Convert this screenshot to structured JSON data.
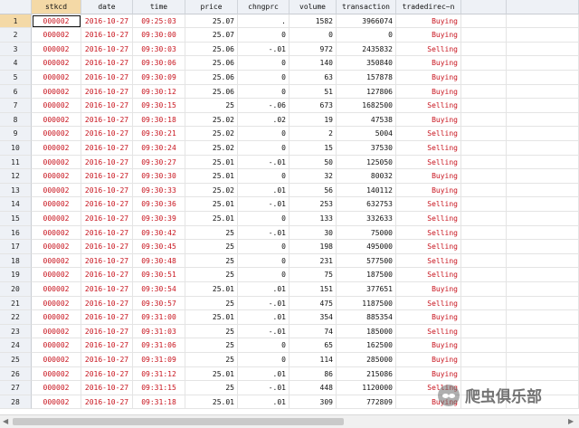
{
  "columns": [
    "stkcd",
    "date",
    "time",
    "price",
    "chngprc",
    "volume",
    "transaction",
    "tradedirec~n"
  ],
  "rows": [
    [
      "1",
      "000002",
      "2016-10-27",
      "09:25:03",
      "25.07",
      ".",
      "1582",
      "3966074",
      "Buying"
    ],
    [
      "2",
      "000002",
      "2016-10-27",
      "09:30:00",
      "25.07",
      "0",
      "0",
      "0",
      "Buying"
    ],
    [
      "3",
      "000002",
      "2016-10-27",
      "09:30:03",
      "25.06",
      "-.01",
      "972",
      "2435832",
      "Selling"
    ],
    [
      "4",
      "000002",
      "2016-10-27",
      "09:30:06",
      "25.06",
      "0",
      "140",
      "350840",
      "Buying"
    ],
    [
      "5",
      "000002",
      "2016-10-27",
      "09:30:09",
      "25.06",
      "0",
      "63",
      "157878",
      "Buying"
    ],
    [
      "6",
      "000002",
      "2016-10-27",
      "09:30:12",
      "25.06",
      "0",
      "51",
      "127806",
      "Buying"
    ],
    [
      "7",
      "000002",
      "2016-10-27",
      "09:30:15",
      "25",
      "-.06",
      "673",
      "1682500",
      "Selling"
    ],
    [
      "8",
      "000002",
      "2016-10-27",
      "09:30:18",
      "25.02",
      ".02",
      "19",
      "47538",
      "Buying"
    ],
    [
      "9",
      "000002",
      "2016-10-27",
      "09:30:21",
      "25.02",
      "0",
      "2",
      "5004",
      "Selling"
    ],
    [
      "10",
      "000002",
      "2016-10-27",
      "09:30:24",
      "25.02",
      "0",
      "15",
      "37530",
      "Selling"
    ],
    [
      "11",
      "000002",
      "2016-10-27",
      "09:30:27",
      "25.01",
      "-.01",
      "50",
      "125050",
      "Selling"
    ],
    [
      "12",
      "000002",
      "2016-10-27",
      "09:30:30",
      "25.01",
      "0",
      "32",
      "80032",
      "Buying"
    ],
    [
      "13",
      "000002",
      "2016-10-27",
      "09:30:33",
      "25.02",
      ".01",
      "56",
      "140112",
      "Buying"
    ],
    [
      "14",
      "000002",
      "2016-10-27",
      "09:30:36",
      "25.01",
      "-.01",
      "253",
      "632753",
      "Selling"
    ],
    [
      "15",
      "000002",
      "2016-10-27",
      "09:30:39",
      "25.01",
      "0",
      "133",
      "332633",
      "Selling"
    ],
    [
      "16",
      "000002",
      "2016-10-27",
      "09:30:42",
      "25",
      "-.01",
      "30",
      "75000",
      "Selling"
    ],
    [
      "17",
      "000002",
      "2016-10-27",
      "09:30:45",
      "25",
      "0",
      "198",
      "495000",
      "Selling"
    ],
    [
      "18",
      "000002",
      "2016-10-27",
      "09:30:48",
      "25",
      "0",
      "231",
      "577500",
      "Selling"
    ],
    [
      "19",
      "000002",
      "2016-10-27",
      "09:30:51",
      "25",
      "0",
      "75",
      "187500",
      "Selling"
    ],
    [
      "20",
      "000002",
      "2016-10-27",
      "09:30:54",
      "25.01",
      ".01",
      "151",
      "377651",
      "Buying"
    ],
    [
      "21",
      "000002",
      "2016-10-27",
      "09:30:57",
      "25",
      "-.01",
      "475",
      "1187500",
      "Selling"
    ],
    [
      "22",
      "000002",
      "2016-10-27",
      "09:31:00",
      "25.01",
      ".01",
      "354",
      "885354",
      "Buying"
    ],
    [
      "23",
      "000002",
      "2016-10-27",
      "09:31:03",
      "25",
      "-.01",
      "74",
      "185000",
      "Selling"
    ],
    [
      "24",
      "000002",
      "2016-10-27",
      "09:31:06",
      "25",
      "0",
      "65",
      "162500",
      "Buying"
    ],
    [
      "25",
      "000002",
      "2016-10-27",
      "09:31:09",
      "25",
      "0",
      "114",
      "285000",
      "Buying"
    ],
    [
      "26",
      "000002",
      "2016-10-27",
      "09:31:12",
      "25.01",
      ".01",
      "86",
      "215086",
      "Buying"
    ],
    [
      "27",
      "000002",
      "2016-10-27",
      "09:31:15",
      "25",
      "-.01",
      "448",
      "1120000",
      "Selling"
    ],
    [
      "28",
      "000002",
      "2016-10-27",
      "09:31:18",
      "25.01",
      ".01",
      "309",
      "772809",
      "Buying"
    ]
  ],
  "watermark": {
    "text": "爬虫俱乐部",
    "icon": "wechat-icon"
  },
  "colors": {
    "string_text": "#c8141e",
    "numeric_text": "#111111",
    "header_bg": "#eef1f6",
    "selected_bg": "#f4d9a6"
  },
  "active_cell": {
    "row": 1,
    "column": "stkcd"
  }
}
